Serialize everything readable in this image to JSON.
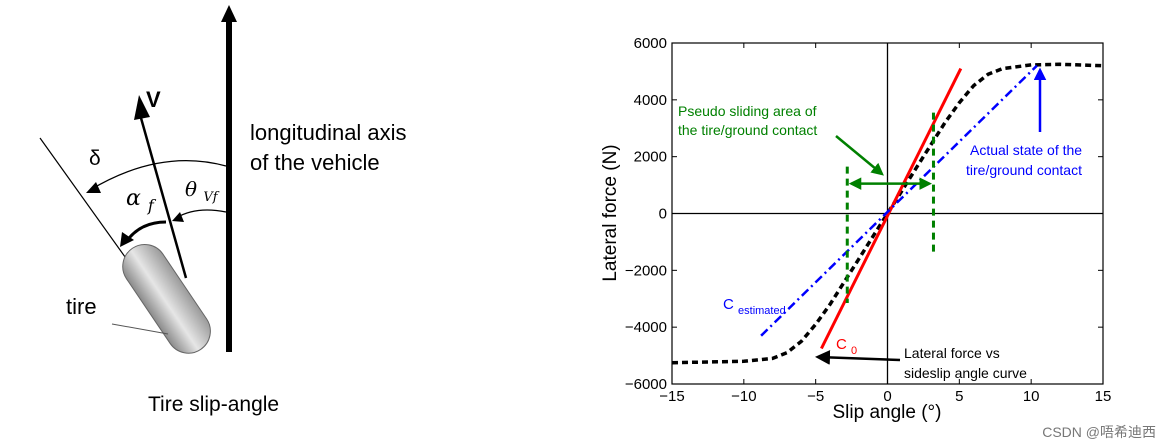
{
  "left_figure": {
    "axis_label_line1": "longitudinal axis",
    "axis_label_line2": "of the vehicle",
    "velocity_label": "V",
    "delta_label": "δ",
    "alpha_label": "α",
    "alpha_sub": "f",
    "theta_label": "θ",
    "theta_sub": "Vf",
    "tire_label": "tire",
    "caption": "Tire slip-angle"
  },
  "chart_data": {
    "type": "line",
    "xlabel": "Slip angle (°)",
    "ylabel": "Lateral force (N)",
    "xlim": [
      -15,
      15
    ],
    "ylim": [
      -6000,
      6000
    ],
    "xticks": [
      -15,
      -10,
      -5,
      0,
      5,
      10,
      15
    ],
    "yticks": [
      -6000,
      -4000,
      -2000,
      0,
      2000,
      4000,
      6000
    ],
    "grid": false,
    "series": [
      {
        "color": "#000000",
        "style": "dashed",
        "x": [
          -15,
          -10,
          -8,
          -7,
          -6,
          -5,
          -4,
          -3,
          -2,
          -1,
          0,
          1,
          2,
          3,
          4,
          5,
          6,
          7,
          8,
          10,
          12,
          15
        ],
        "y": [
          -5250,
          -5200,
          -5100,
          -4900,
          -4500,
          -3900,
          -3200,
          -2400,
          -1600,
          -800,
          0,
          800,
          1600,
          2400,
          3200,
          3900,
          4500,
          4900,
          5100,
          5230,
          5250,
          5200
        ]
      },
      {
        "name": "C0",
        "color": "#ff0000",
        "style": "solid",
        "x": [
          -4.6,
          5.1
        ],
        "y": [
          -4750,
          5100
        ]
      },
      {
        "name": "Cestimated",
        "color": "#0000ff",
        "style": "dashdot",
        "x": [
          -8.8,
          10.4
        ],
        "y": [
          -4300,
          5200
        ]
      }
    ],
    "pseudo_sliding_bounds_x": [
      -2.8,
      3.2
    ],
    "annotations": {
      "pseudo_line1": "Pseudo sliding area of",
      "pseudo_line2": "the tire/ground contact",
      "actual_line1": "Actual state of the",
      "actual_line2": "tire/ground contact",
      "c_estimated_main": "C",
      "c_estimated_sub": "estimated",
      "c0_main": "C",
      "c0_sub": "0",
      "curve_line1": "Lateral force vs",
      "curve_line2": "sideslip angle curve"
    }
  },
  "watermark": "CSDN @唔希迪西",
  "colors": {
    "green": "#008000",
    "blue": "#0000ff",
    "red": "#ff0000",
    "black": "#000000"
  }
}
